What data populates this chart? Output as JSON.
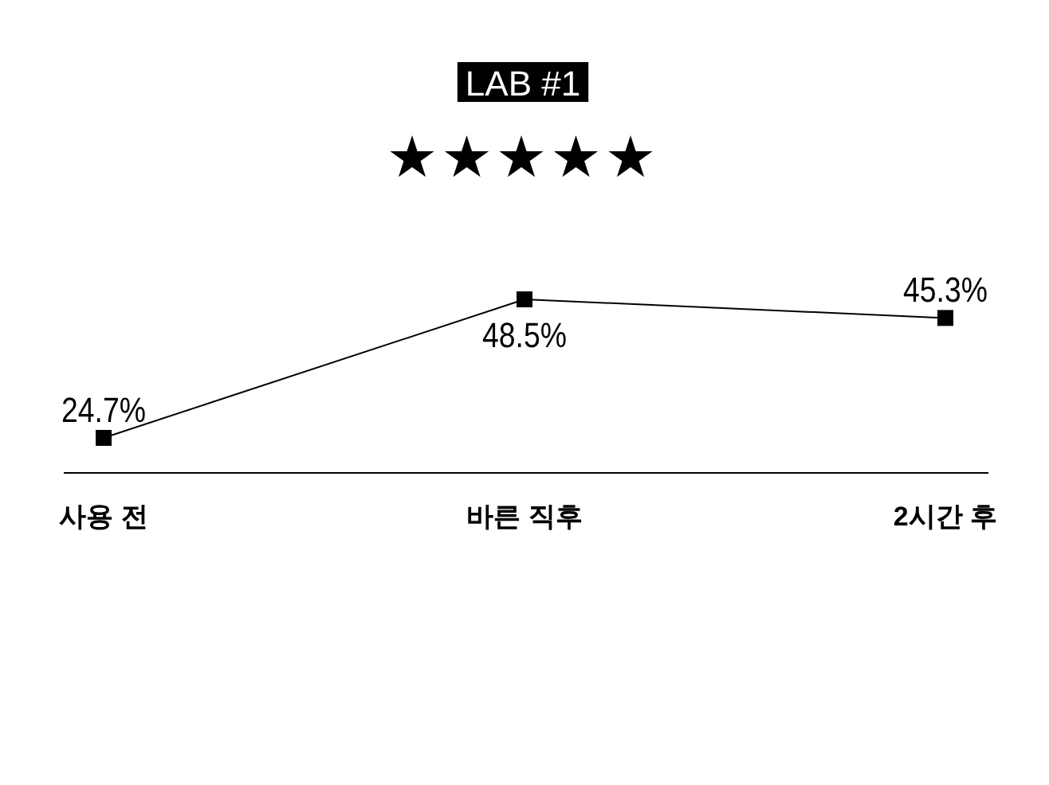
{
  "chart_data": {
    "type": "line",
    "title": "LAB #1",
    "subtitle": "★★★★★",
    "categories": [
      "사용 전",
      "바른 직후",
      "2시간 후"
    ],
    "series": [
      {
        "color": "#000000",
        "values": [
          24.7,
          48.5,
          45.3
        ],
        "value_labels": [
          "24.7%",
          "48.5%",
          "45.3%"
        ]
      }
    ],
    "marker": "square",
    "line_style": "solid"
  }
}
